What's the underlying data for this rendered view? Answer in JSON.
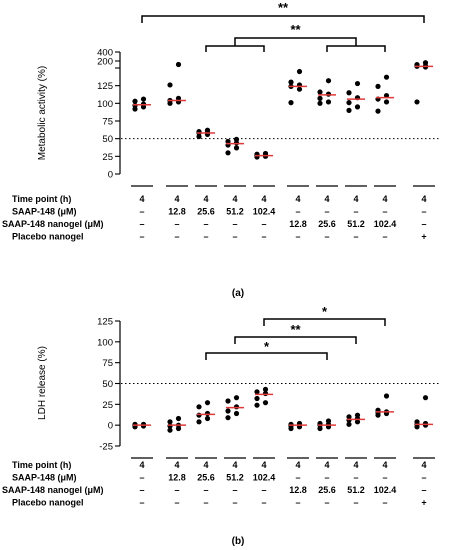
{
  "chart_data": [
    {
      "type": "scatter",
      "panel_label": "(a)",
      "ylabel": "Metabolic activity (%)",
      "yticks": [
        0,
        25,
        50,
        75,
        100,
        125,
        150,
        200,
        400
      ],
      "reference_line": 50,
      "groups": [
        {
          "points": [
            92,
            95,
            97,
            99,
            103,
            106
          ],
          "median": 98
        },
        {
          "points": [
            100,
            102,
            104,
            107,
            126,
            175
          ],
          "median": 104
        },
        {
          "points": [
            53,
            56,
            58,
            59,
            60,
            62
          ],
          "median": 58
        },
        {
          "points": [
            30,
            37,
            41,
            44,
            46,
            49
          ],
          "median": 43
        },
        {
          "points": [
            24,
            25,
            26,
            27,
            28,
            29
          ],
          "median": 26
        },
        {
          "points": [
            101,
            120,
            124,
            126,
            130,
            145
          ],
          "median": 124
        },
        {
          "points": [
            100,
            102,
            107,
            113,
            116,
            132
          ],
          "median": 112
        },
        {
          "points": [
            90,
            95,
            101,
            108,
            115,
            128
          ],
          "median": 106
        },
        {
          "points": [
            89,
            102,
            106,
            111,
            124,
            137
          ],
          "median": 108
        },
        {
          "points": [
            102,
            157,
            162,
            166,
            174,
            188
          ],
          "median": 162
        }
      ],
      "significance": [
        {
          "from": 0,
          "to": 9,
          "label": "**"
        },
        {
          "from_range": [
            2,
            4
          ],
          "to_range": [
            6,
            8
          ],
          "label": "**"
        }
      ],
      "table": {
        "rows": [
          {
            "label": "Time point (h)",
            "cells": [
              "4",
              "4",
              "4",
              "4",
              "4",
              "4",
              "4",
              "4",
              "4",
              "4"
            ]
          },
          {
            "label": "SAAP-148 (μM)",
            "cells": [
              "–",
              "12.8",
              "25.6",
              "51.2",
              "102.4",
              "–",
              "–",
              "–",
              "–",
              "–"
            ]
          },
          {
            "label": "SAAP-148 nanogel (μM)",
            "cells": [
              "–",
              "–",
              "–",
              "–",
              "–",
              "12.8",
              "25.6",
              "51.2",
              "102.4",
              "–"
            ]
          },
          {
            "label": "Placebo nanogel",
            "cells": [
              "–",
              "–",
              "–",
              "–",
              "–",
              "–",
              "–",
              "–",
              "–",
              "+"
            ]
          }
        ]
      }
    },
    {
      "type": "scatter",
      "panel_label": "(b)",
      "ylabel": "LDH release (%)",
      "yticks": [
        -25,
        0,
        25,
        50,
        75,
        100,
        125
      ],
      "ylim": [
        -25,
        125
      ],
      "reference_line": 50,
      "groups": [
        {
          "points": [
            -2,
            -1,
            0,
            0,
            1,
            1
          ],
          "median": 0
        },
        {
          "points": [
            -6,
            -4,
            -1,
            0,
            4,
            8
          ],
          "median": 0
        },
        {
          "points": [
            4,
            8,
            12,
            14,
            22,
            27
          ],
          "median": 13
        },
        {
          "points": [
            9,
            14,
            17,
            22,
            29,
            33
          ],
          "median": 21
        },
        {
          "points": [
            24,
            27,
            32,
            38,
            40,
            43
          ],
          "median": 37
        },
        {
          "points": [
            -4,
            -2,
            -1,
            0,
            1,
            2
          ],
          "median": 0
        },
        {
          "points": [
            -4,
            -2,
            0,
            1,
            2,
            5
          ],
          "median": 0
        },
        {
          "points": [
            1,
            4,
            6,
            8,
            10,
            12
          ],
          "median": 7
        },
        {
          "points": [
            12,
            14,
            15,
            16,
            18,
            35
          ],
          "median": 16
        },
        {
          "points": [
            -2,
            0,
            1,
            2,
            4,
            33
          ],
          "median": 1
        }
      ],
      "significance": [
        {
          "from": 2,
          "to": 6,
          "label": "*"
        },
        {
          "from": 3,
          "to": 7,
          "label": "**"
        },
        {
          "from": 4,
          "to": 8,
          "label": "*"
        }
      ],
      "table": {
        "rows": [
          {
            "label": "Time point (h)",
            "cells": [
              "4",
              "4",
              "4",
              "4",
              "4",
              "4",
              "4",
              "4",
              "4",
              "4"
            ]
          },
          {
            "label": "SAAP-148 (μM)",
            "cells": [
              "–",
              "12.8",
              "25.6",
              "51.2",
              "102.4",
              "–",
              "–",
              "–",
              "–",
              "–"
            ]
          },
          {
            "label": "SAAP-148 nanogel (μM)",
            "cells": [
              "–",
              "–",
              "–",
              "–",
              "–",
              "12.8",
              "25.6",
              "51.2",
              "102.4",
              "–"
            ]
          },
          {
            "label": "Placebo nanogel",
            "cells": [
              "–",
              "–",
              "–",
              "–",
              "–",
              "–",
              "–",
              "–",
              "–",
              "+"
            ]
          }
        ]
      }
    }
  ]
}
